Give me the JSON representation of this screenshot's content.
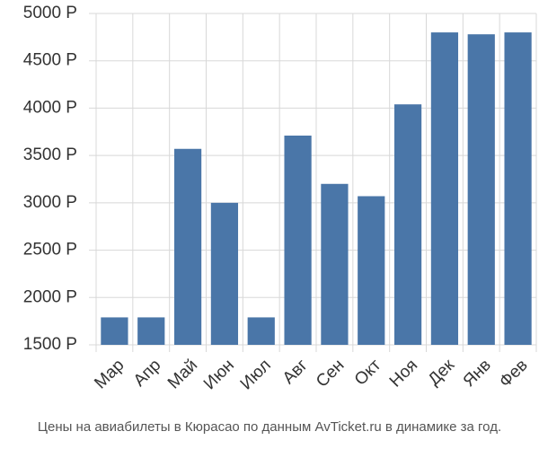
{
  "chart_data": {
    "type": "bar",
    "caption": "Цены на авиабилеты в Кюрасао по данным AvTicket.ru в динамике за год.",
    "categories": [
      "Мар",
      "Апр",
      "Май",
      "Июн",
      "Июл",
      "Авг",
      "Сен",
      "Окт",
      "Ноя",
      "Дек",
      "Янв",
      "Фев"
    ],
    "values": [
      1790,
      1790,
      3570,
      3000,
      1790,
      3710,
      3200,
      3070,
      4040,
      4800,
      4780,
      4800
    ],
    "color": "#4a76a8",
    "ylim": [
      1500,
      5000
    ],
    "yticks": [
      {
        "value": 1500,
        "label": "1500 Р"
      },
      {
        "value": 2000,
        "label": "2000 Р"
      },
      {
        "value": 2500,
        "label": "2500 Р"
      },
      {
        "value": 3000,
        "label": "3000 Р"
      },
      {
        "value": 3500,
        "label": "3500 Р"
      },
      {
        "value": 4000,
        "label": "4000 Р"
      },
      {
        "value": 4500,
        "label": "4500 Р"
      },
      {
        "value": 5000,
        "label": "5000 Р"
      }
    ],
    "grid": true
  }
}
